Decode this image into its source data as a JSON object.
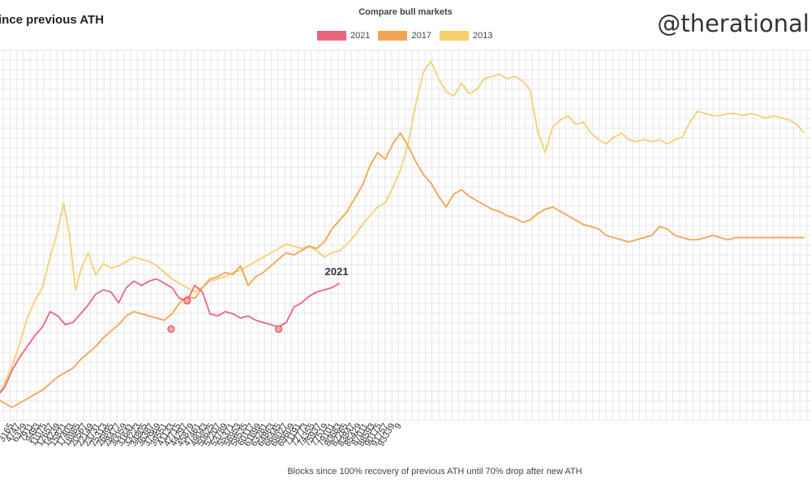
{
  "page": {
    "title": "ince previous ATH",
    "watermark": "@therational"
  },
  "chart_data": {
    "type": "line",
    "title": "Compare bull markets",
    "xlabel": "Blocks since 100% recovery of previous ATH until 70% drop after new ATH",
    "ylabel": "",
    "grid": true,
    "legend_position": "top-center",
    "x_ticks": [
      "3",
      "1582",
      "3165",
      "4747",
      "6329",
      "7911",
      "9493",
      "11075",
      "12657",
      "14239",
      "15821",
      "17403",
      "18985",
      "20567",
      "22149",
      "23731",
      "25313",
      "26895",
      "28477",
      "30059",
      "31641",
      "33223",
      "34805",
      "36387",
      "37969",
      "39551",
      "41133",
      "42715",
      "44297",
      "45879",
      "47461",
      "49043",
      "50625",
      "52207",
      "53789",
      "55371",
      "56953",
      "58535",
      "60117",
      "61699",
      "63281",
      "64863",
      "66445",
      "68027",
      "69609",
      "71191",
      "72773",
      "74355",
      "75937",
      "77519",
      "79101",
      "80683",
      "82265",
      "83847",
      "85429",
      "87011",
      "88593",
      "90175",
      "91757",
      "93339",
      "94921"
    ],
    "x_tick_labels_shown": [
      "3",
      "",
      "3165",
      "4747",
      "6329",
      "7911",
      "9493",
      "11075",
      "12657",
      "14239",
      "15821",
      "17403",
      "18985",
      "20567",
      "22149",
      "23731",
      "25313",
      "26895",
      "28477",
      "30059",
      "31641",
      "33223",
      "34805",
      "36387",
      "37969",
      "39551",
      "41133",
      "42715",
      "44297",
      "45879",
      "47461",
      "49043",
      "50625",
      "52207",
      "53789",
      "55371",
      "56953",
      "58535",
      "60117",
      "61699",
      "63281",
      "64863",
      "66445",
      "68027",
      "69609",
      "71191",
      "72773",
      "74355",
      "75937",
      "77519",
      "79101",
      "80683",
      "82265",
      "83847",
      "85429",
      "87011",
      "88593",
      "90175",
      "91757",
      "93339",
      "9"
    ],
    "series": [
      {
        "name": "2021",
        "color": "#e8677f",
        "end_label": "2021",
        "points": [
          [
            0,
            0.06
          ],
          [
            900,
            0.1
          ],
          [
            1800,
            0.18
          ],
          [
            2700,
            0.24
          ],
          [
            3600,
            0.29
          ],
          [
            4500,
            0.34
          ],
          [
            5400,
            0.38
          ],
          [
            6300,
            0.45
          ],
          [
            7200,
            0.43
          ],
          [
            8100,
            0.39
          ],
          [
            9000,
            0.4
          ],
          [
            9900,
            0.44
          ],
          [
            10800,
            0.48
          ],
          [
            11700,
            0.53
          ],
          [
            12600,
            0.55
          ],
          [
            13500,
            0.54
          ],
          [
            14400,
            0.49
          ],
          [
            15300,
            0.56
          ],
          [
            16200,
            0.59
          ],
          [
            17100,
            0.57
          ],
          [
            18000,
            0.59
          ],
          [
            18900,
            0.6
          ],
          [
            19800,
            0.58
          ],
          [
            20700,
            0.56
          ],
          [
            21600,
            0.51
          ],
          [
            22500,
            0.5
          ],
          [
            23400,
            0.57
          ],
          [
            24300,
            0.54
          ],
          [
            25200,
            0.44
          ],
          [
            26100,
            0.43
          ],
          [
            27000,
            0.45
          ],
          [
            27900,
            0.44
          ],
          [
            28800,
            0.42
          ],
          [
            29700,
            0.43
          ],
          [
            30600,
            0.41
          ],
          [
            31500,
            0.4
          ],
          [
            32400,
            0.39
          ],
          [
            33300,
            0.38
          ],
          [
            34200,
            0.4
          ],
          [
            35100,
            0.47
          ],
          [
            36000,
            0.49
          ],
          [
            36900,
            0.52
          ],
          [
            37800,
            0.54
          ],
          [
            38700,
            0.55
          ],
          [
            39600,
            0.56
          ],
          [
            40500,
            0.58
          ]
        ],
        "markers": [
          [
            20600,
            0.37
          ],
          [
            33300,
            0.37
          ]
        ]
      },
      {
        "name": "2017",
        "color": "#f0a552",
        "points": [
          [
            0,
            0.05
          ],
          [
            900,
            0.03
          ],
          [
            1800,
            0.01
          ],
          [
            2700,
            0.03
          ],
          [
            3600,
            0.05
          ],
          [
            4500,
            0.07
          ],
          [
            5400,
            0.09
          ],
          [
            6300,
            0.12
          ],
          [
            7200,
            0.15
          ],
          [
            8100,
            0.17
          ],
          [
            9000,
            0.19
          ],
          [
            9900,
            0.23
          ],
          [
            10800,
            0.26
          ],
          [
            11700,
            0.29
          ],
          [
            12600,
            0.33
          ],
          [
            13500,
            0.36
          ],
          [
            14400,
            0.39
          ],
          [
            15300,
            0.43
          ],
          [
            16200,
            0.45
          ],
          [
            17100,
            0.44
          ],
          [
            18000,
            0.43
          ],
          [
            18900,
            0.42
          ],
          [
            19800,
            0.41
          ],
          [
            20700,
            0.44
          ],
          [
            21600,
            0.49
          ],
          [
            22500,
            0.52
          ],
          [
            23400,
            0.51
          ],
          [
            24300,
            0.56
          ],
          [
            25200,
            0.6
          ],
          [
            26100,
            0.61
          ],
          [
            27000,
            0.63
          ],
          [
            27900,
            0.62
          ],
          [
            28800,
            0.66
          ],
          [
            29700,
            0.57
          ],
          [
            30600,
            0.61
          ],
          [
            31500,
            0.63
          ],
          [
            32400,
            0.66
          ],
          [
            33300,
            0.69
          ],
          [
            34200,
            0.72
          ],
          [
            35100,
            0.71
          ],
          [
            36000,
            0.73
          ],
          [
            36900,
            0.75
          ],
          [
            37800,
            0.74
          ],
          [
            38700,
            0.77
          ],
          [
            39600,
            0.83
          ],
          [
            40500,
            0.87
          ],
          [
            41400,
            0.91
          ],
          [
            42300,
            0.97
          ],
          [
            43200,
            1.03
          ],
          [
            44100,
            1.12
          ],
          [
            45000,
            1.18
          ],
          [
            45900,
            1.15
          ],
          [
            46800,
            1.22
          ],
          [
            47700,
            1.27
          ],
          [
            48600,
            1.21
          ],
          [
            49500,
            1.14
          ],
          [
            50400,
            1.08
          ],
          [
            51300,
            1.04
          ],
          [
            52200,
            0.98
          ],
          [
            53100,
            0.93
          ],
          [
            54000,
            0.99
          ],
          [
            54900,
            1.01
          ],
          [
            55800,
            0.98
          ],
          [
            56700,
            0.96
          ],
          [
            57600,
            0.94
          ],
          [
            58500,
            0.92
          ],
          [
            59400,
            0.91
          ],
          [
            60300,
            0.89
          ],
          [
            61200,
            0.88
          ],
          [
            62100,
            0.86
          ],
          [
            63000,
            0.87
          ],
          [
            63900,
            0.9
          ],
          [
            64800,
            0.92
          ],
          [
            65700,
            0.93
          ],
          [
            66600,
            0.91
          ],
          [
            67500,
            0.89
          ],
          [
            68400,
            0.87
          ],
          [
            69300,
            0.85
          ],
          [
            70200,
            0.84
          ],
          [
            71100,
            0.83
          ],
          [
            72000,
            0.8
          ],
          [
            72900,
            0.79
          ],
          [
            73800,
            0.78
          ],
          [
            74700,
            0.77
          ],
          [
            75600,
            0.78
          ],
          [
            76500,
            0.79
          ],
          [
            77400,
            0.8
          ],
          [
            78300,
            0.84
          ],
          [
            79200,
            0.83
          ],
          [
            80100,
            0.8
          ],
          [
            81000,
            0.79
          ],
          [
            81900,
            0.78
          ],
          [
            82800,
            0.78
          ],
          [
            83700,
            0.79
          ],
          [
            84600,
            0.8
          ],
          [
            85500,
            0.79
          ],
          [
            86400,
            0.78
          ],
          [
            87300,
            0.79
          ],
          [
            88200,
            0.79
          ],
          [
            89100,
            0.79
          ],
          [
            90000,
            0.79
          ],
          [
            90900,
            0.79
          ],
          [
            91800,
            0.79
          ],
          [
            92700,
            0.79
          ],
          [
            93600,
            0.79
          ],
          [
            94500,
            0.79
          ],
          [
            95400,
            0.79
          ]
        ]
      },
      {
        "name": "2013",
        "color": "#f7cf6e",
        "points": [
          [
            0,
            0.05
          ],
          [
            900,
            0.12
          ],
          [
            1800,
            0.2
          ],
          [
            2700,
            0.3
          ],
          [
            3600,
            0.42
          ],
          [
            4500,
            0.5
          ],
          [
            5400,
            0.56
          ],
          [
            6300,
            0.7
          ],
          [
            7200,
            0.82
          ],
          [
            7900,
            0.95
          ],
          [
            8600,
            0.8
          ],
          [
            9300,
            0.55
          ],
          [
            10000,
            0.65
          ],
          [
            10800,
            0.72
          ],
          [
            11700,
            0.62
          ],
          [
            12600,
            0.67
          ],
          [
            13500,
            0.65
          ],
          [
            14400,
            0.66
          ],
          [
            15300,
            0.68
          ],
          [
            16200,
            0.7
          ],
          [
            17100,
            0.69
          ],
          [
            18000,
            0.68
          ],
          [
            18900,
            0.66
          ],
          [
            19800,
            0.63
          ],
          [
            20700,
            0.6
          ],
          [
            21600,
            0.58
          ],
          [
            22500,
            0.56
          ],
          [
            23400,
            0.54
          ],
          [
            24300,
            0.56
          ],
          [
            25200,
            0.59
          ],
          [
            26100,
            0.6
          ],
          [
            27000,
            0.61
          ],
          [
            27900,
            0.63
          ],
          [
            28800,
            0.64
          ],
          [
            29700,
            0.66
          ],
          [
            30600,
            0.68
          ],
          [
            31500,
            0.7
          ],
          [
            32400,
            0.72
          ],
          [
            33300,
            0.74
          ],
          [
            34200,
            0.76
          ],
          [
            35100,
            0.75
          ],
          [
            36000,
            0.74
          ],
          [
            36900,
            0.75
          ],
          [
            37800,
            0.73
          ],
          [
            38700,
            0.7
          ],
          [
            39600,
            0.72
          ],
          [
            40500,
            0.73
          ],
          [
            41400,
            0.76
          ],
          [
            42300,
            0.8
          ],
          [
            43200,
            0.85
          ],
          [
            44100,
            0.89
          ],
          [
            45000,
            0.93
          ],
          [
            45900,
            0.95
          ],
          [
            46800,
            1.02
          ],
          [
            47700,
            1.1
          ],
          [
            48600,
            1.22
          ],
          [
            49500,
            1.4
          ],
          [
            50400,
            1.55
          ],
          [
            51300,
            1.6
          ],
          [
            52200,
            1.52
          ],
          [
            53100,
            1.46
          ],
          [
            54000,
            1.44
          ],
          [
            54900,
            1.5
          ],
          [
            55800,
            1.45
          ],
          [
            56700,
            1.47
          ],
          [
            57600,
            1.52
          ],
          [
            58500,
            1.53
          ],
          [
            59400,
            1.54
          ],
          [
            60300,
            1.52
          ],
          [
            61200,
            1.53
          ],
          [
            62100,
            1.51
          ],
          [
            63000,
            1.47
          ],
          [
            63900,
            1.28
          ],
          [
            64800,
            1.18
          ],
          [
            65700,
            1.3
          ],
          [
            66600,
            1.33
          ],
          [
            67500,
            1.35
          ],
          [
            68400,
            1.31
          ],
          [
            69300,
            1.32
          ],
          [
            70200,
            1.27
          ],
          [
            71100,
            1.24
          ],
          [
            72000,
            1.22
          ],
          [
            72900,
            1.25
          ],
          [
            73800,
            1.27
          ],
          [
            74700,
            1.24
          ],
          [
            75600,
            1.23
          ],
          [
            76500,
            1.24
          ],
          [
            77400,
            1.23
          ],
          [
            78300,
            1.24
          ],
          [
            79200,
            1.22
          ],
          [
            80100,
            1.24
          ],
          [
            81000,
            1.25
          ],
          [
            81900,
            1.32
          ],
          [
            82800,
            1.37
          ],
          [
            83700,
            1.36
          ],
          [
            84600,
            1.35
          ],
          [
            85500,
            1.35
          ],
          [
            86400,
            1.36
          ],
          [
            87300,
            1.36
          ],
          [
            88200,
            1.35
          ],
          [
            89100,
            1.36
          ],
          [
            90000,
            1.35
          ],
          [
            90900,
            1.34
          ],
          [
            91800,
            1.35
          ],
          [
            92700,
            1.34
          ],
          [
            93600,
            1.33
          ],
          [
            94500,
            1.31
          ],
          [
            95400,
            1.27
          ]
        ],
        "markers": [
          [
            22500,
            0.5
          ]
        ]
      }
    ]
  }
}
